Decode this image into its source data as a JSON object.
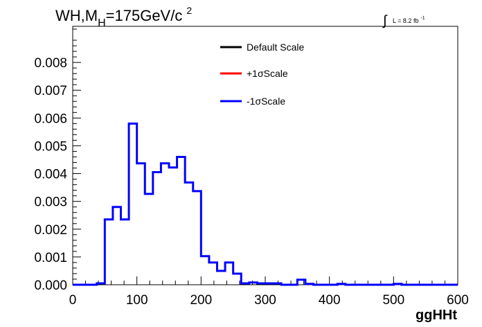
{
  "title": {
    "main": "WH,M",
    "sub": "H",
    "rest": "=175GeV/c",
    "sup": "2"
  },
  "lumi": {
    "integral": "∫",
    "text": "L = 8.2 fb",
    "sup": "-1"
  },
  "legend": [
    {
      "label": "Default Scale",
      "color": "#000000"
    },
    {
      "label": "+1σScale",
      "color": "#ff0000"
    },
    {
      "label": "-1σScale",
      "color": "#0000ff"
    }
  ],
  "chart_data": {
    "type": "step-histogram",
    "xlabel": "ggHHt",
    "ylabel": "",
    "xlim": [
      0,
      600
    ],
    "ylim": [
      0,
      0.0093
    ],
    "xticks": [
      0,
      100,
      200,
      300,
      400,
      500,
      600
    ],
    "yticks": [
      0.0,
      0.001,
      0.002,
      0.003,
      0.004,
      0.005,
      0.006,
      0.007,
      0.008
    ],
    "ytick_labels": [
      "0.000",
      "0.001",
      "0.002",
      "0.003",
      "0.004",
      "0.005",
      "0.006",
      "0.007",
      "0.008"
    ],
    "bin_edges": [
      0,
      12.5,
      25,
      37.5,
      50,
      62.5,
      75,
      87.5,
      100,
      112.5,
      125,
      137.5,
      150,
      162.5,
      175,
      187.5,
      200,
      212.5,
      225,
      237.5,
      250,
      262.5,
      275,
      287.5,
      300,
      312.5,
      325,
      337.5,
      350,
      362.5,
      375,
      387.5,
      400,
      412.5,
      425,
      437.5,
      450,
      462.5,
      475,
      487.5,
      500,
      512.5,
      525,
      537.5,
      550,
      562.5,
      575,
      587.5,
      600
    ],
    "series": [
      {
        "name": "-1σScale",
        "color": "#0000ff",
        "values": [
          0,
          0,
          0,
          5e-05,
          0.00235,
          0.0028,
          0.00235,
          0.0058,
          0.00437,
          0.00327,
          0.00405,
          0.00437,
          0.00422,
          0.0046,
          0.00368,
          0.00337,
          0.00103,
          0.0008,
          0.0005,
          0.0008,
          0.0004,
          5e-05,
          8e-05,
          5e-05,
          5e-05,
          5e-05,
          0,
          0,
          0.00018,
          3e-05,
          0,
          0,
          0,
          3e-05,
          0,
          0,
          0,
          0,
          0,
          0,
          3e-05,
          0,
          0,
          0,
          0,
          0,
          0,
          0
        ]
      }
    ]
  }
}
